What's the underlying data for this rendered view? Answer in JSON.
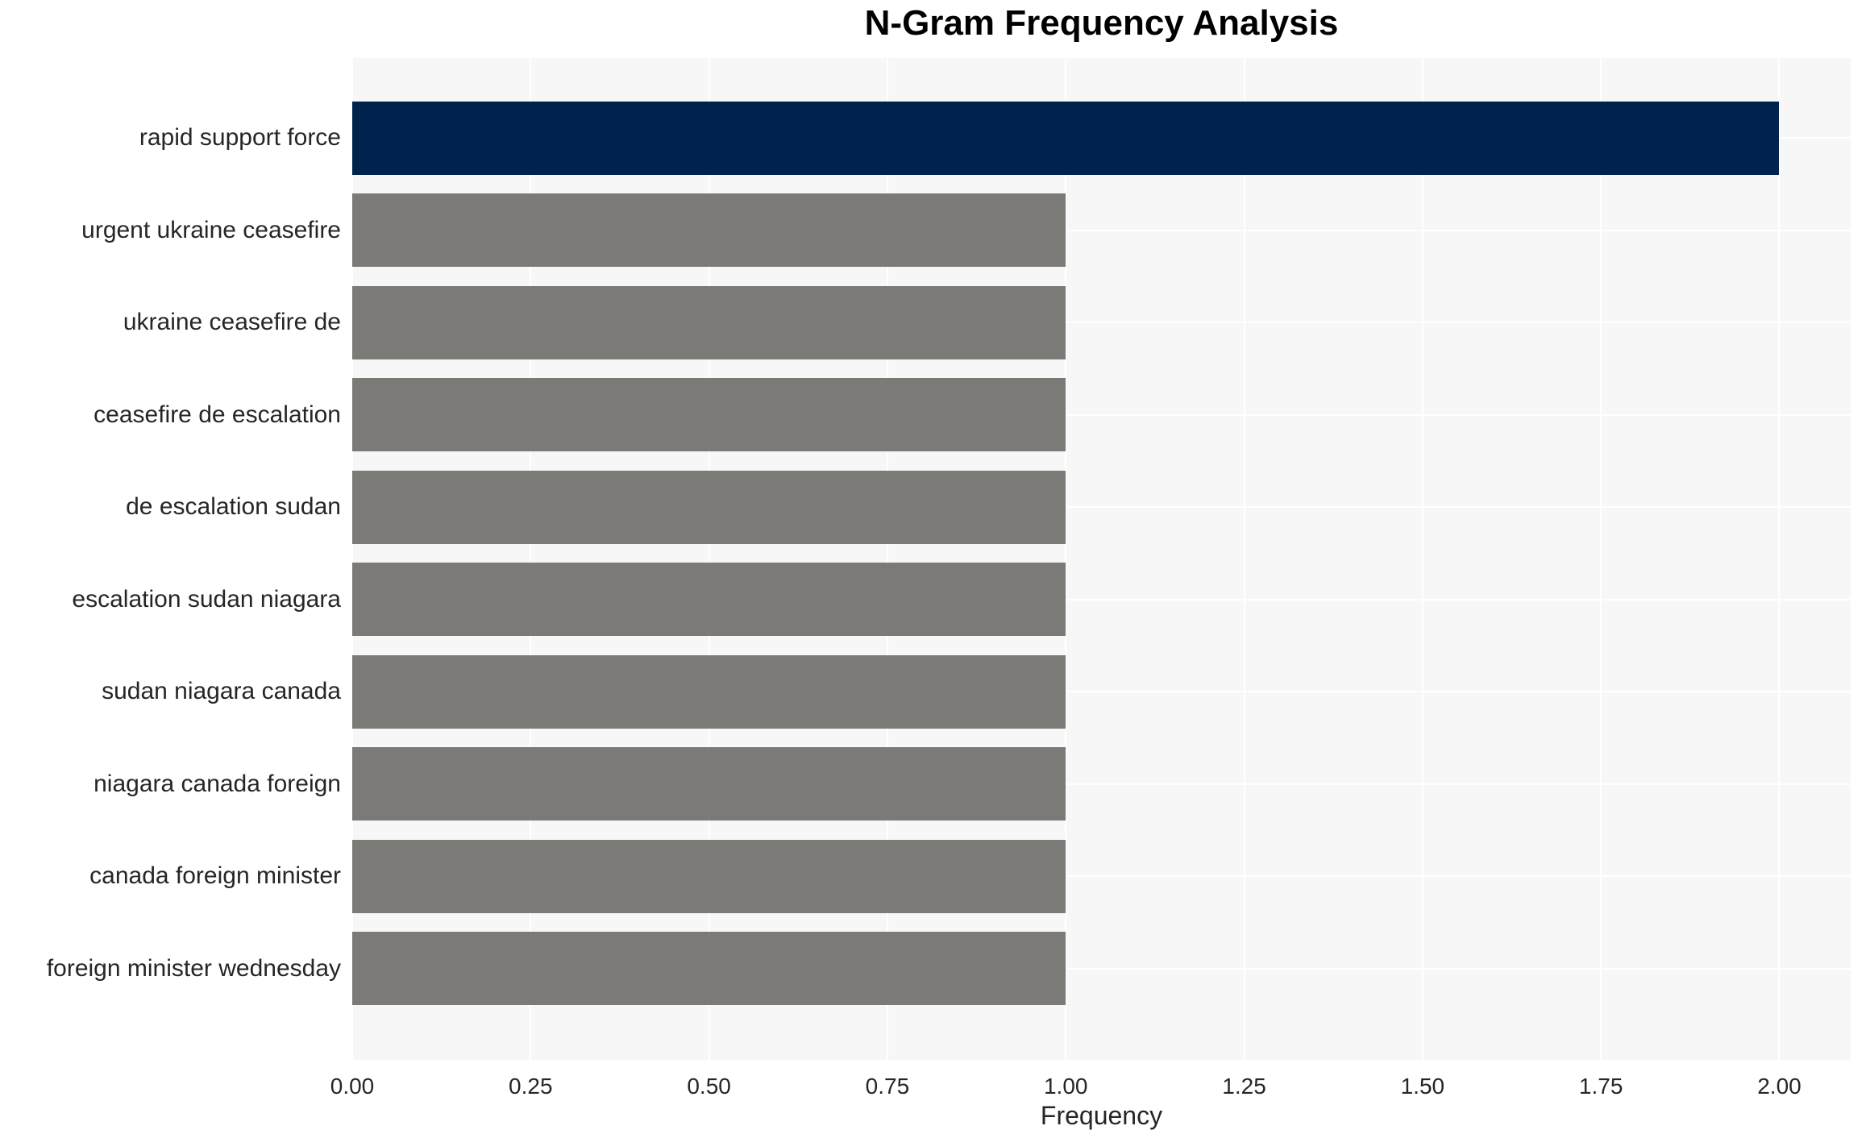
{
  "chart_data": {
    "type": "bar",
    "orientation": "horizontal",
    "title": "N-Gram Frequency Analysis",
    "xlabel": "Frequency",
    "ylabel": "",
    "categories": [
      "rapid support force",
      "urgent ukraine ceasefire",
      "ukraine ceasefire de",
      "ceasefire de escalation",
      "de escalation sudan",
      "escalation sudan niagara",
      "sudan niagara canada",
      "niagara canada foreign",
      "canada foreign minister",
      "foreign minister wednesday"
    ],
    "values": [
      2,
      1,
      1,
      1,
      1,
      1,
      1,
      1,
      1,
      1
    ],
    "xlim": [
      0,
      2.0
    ],
    "xticks": [
      "0.00",
      "0.25",
      "0.50",
      "0.75",
      "1.00",
      "1.25",
      "1.50",
      "1.75",
      "2.00"
    ],
    "xtick_values": [
      0,
      0.25,
      0.5,
      0.75,
      1.0,
      1.25,
      1.5,
      1.75,
      2.0
    ],
    "grid": true,
    "legend": false,
    "colors": {
      "highlight_bar": "#00234d",
      "default_bar": "#7c7a76",
      "plot_background": "#f7f7f7",
      "gridline": "#ffffff",
      "text": "#262626",
      "title_text": "#000000"
    },
    "bar_colors": [
      "#00234d",
      "#7c7a76",
      "#7c7a76",
      "#7c7a76",
      "#7c7a76",
      "#7c7a76",
      "#7c7a76",
      "#7c7a76",
      "#7c7a76",
      "#7c7a76"
    ]
  }
}
